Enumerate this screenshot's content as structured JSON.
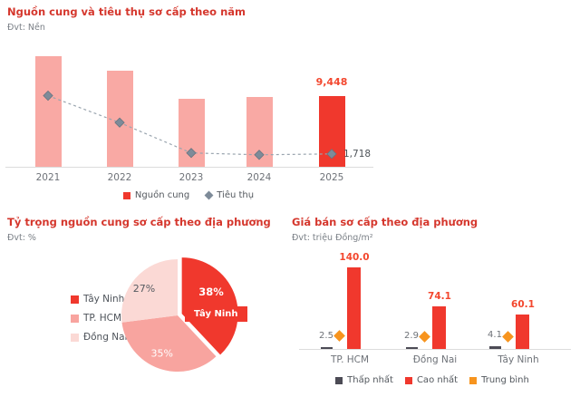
{
  "colors": {
    "title": "#D5372D",
    "bar_red": "#F0382D",
    "bar_salmon": "#F9A9A4",
    "pie_red": "#F0382D",
    "pie_salmon": "#F8A49F",
    "pie_pink": "#FBD9D5",
    "gray_marker": "#7E8B99",
    "line_gray": "#9AA5AF",
    "value_red": "#F3472E",
    "orange": "#F7941E",
    "dark_bar": "#4C4B55",
    "axis_text": "#6E7278",
    "label_dark": "#4E5358"
  },
  "chart_data": [
    {
      "id": "supply-consumption-by-year",
      "type": "bar",
      "title": "Nguồn cung và tiêu thụ sơ cấp theo năm",
      "unit_label": "Đvt: Nền",
      "categories": [
        "2021",
        "2022",
        "2023",
        "2024",
        "2025"
      ],
      "series": [
        {
          "name": "Nguồn cung",
          "type": "bar",
          "values": [
            14800,
            12800,
            9100,
            9300,
            9448
          ],
          "values_estimated": true,
          "labeled_value": 9448
        },
        {
          "name": "Tiêu thụ",
          "type": "line",
          "values": [
            9500,
            5900,
            1850,
            1600,
            1718
          ],
          "values_estimated": true,
          "labeled_value": 1718
        }
      ],
      "data_labels": {
        "supply_2025": "9,448",
        "consumption_2025": "1,718"
      },
      "ylim": [
        0,
        15500
      ],
      "grid": false,
      "legend_position": "bottom"
    },
    {
      "id": "supply-share-by-locality",
      "type": "pie",
      "title": "Tỷ trọng nguồn cung sơ cấp theo địa phương",
      "unit_label": "Đvt: %",
      "categories": [
        "Tây Ninh",
        "TP. HCM",
        "Đồng Nai"
      ],
      "values": [
        38,
        35,
        27
      ],
      "labels": [
        "38%",
        "35%",
        "27%"
      ],
      "callout": "Tây Ninh",
      "legend_position": "left"
    },
    {
      "id": "primary-price-by-locality",
      "type": "bar",
      "title": "Giá bán sơ cấp theo địa phương",
      "unit_label": "Đvt: triệu Đồng/m²",
      "categories": [
        "TP. HCM",
        "Đồng Nai",
        "Tây Ninh"
      ],
      "series": [
        {
          "name": "Thấp nhất",
          "type": "bar",
          "values": [
            2.5,
            2.9,
            4.1
          ]
        },
        {
          "name": "Cao nhất",
          "type": "bar",
          "values": [
            140.0,
            74.1,
            60.1
          ]
        },
        {
          "name": "Trung bình",
          "type": "point",
          "values": [
            22,
            20,
            21
          ],
          "values_estimated": true
        }
      ],
      "data_labels": {
        "min": [
          "2.5",
          "2.9",
          "4.1"
        ],
        "max": [
          "140.0",
          "74.1",
          "60.1"
        ]
      },
      "ylim": [
        0,
        150
      ],
      "grid": false,
      "legend_position": "bottom"
    }
  ]
}
